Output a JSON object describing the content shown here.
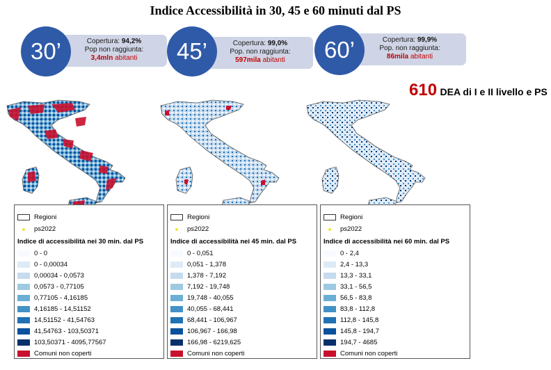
{
  "title": "Indice Accessibilità in 30, 45 e 60 minuti dal PS",
  "panels": [
    {
      "circle_label": "30’",
      "coverage_label": "Copertura:",
      "coverage_value": "94,2%",
      "unreached_label": "Pop non raggiunta:",
      "unreached_value": "3,4mln",
      "unreached_unit": "abitanti",
      "legend": {
        "regions": "Regioni",
        "ps": "ps2022",
        "title": "Indice di accessibilità nei 30 min. dal PS",
        "classes": [
          "0 - 0",
          "0 - 0,00034",
          "0,00034 - 0,0573",
          "0,0573 - 0,77105",
          "0,77105 - 4,16185",
          "4,16185 - 14,51152",
          "14,51152 - 41,54763",
          "41,54763 - 103,50371",
          "103,50371 - 4095,77567"
        ],
        "not_covered": "Comuni non coperti"
      }
    },
    {
      "circle_label": "45’",
      "coverage_label": "Copertura:",
      "coverage_value": "99,0%",
      "unreached_label": "Pop. non raggiunta:",
      "unreached_value": "597mila",
      "unreached_unit": "abitanti",
      "legend": {
        "regions": "Regioni",
        "ps": "ps2022",
        "title": "Indice di accessibilità nei 45 min. dal PS",
        "classes": [
          "0 - 0,051",
          "0,051 - 1,378",
          "1,378 - 7,192",
          "7,192 - 19,748",
          "19,748 - 40,055",
          "40,055 - 68,441",
          "68,441 - 106,967",
          "106,967 - 166,98",
          "166,98 - 6219,625"
        ],
        "not_covered": "Comuni non coperti"
      }
    },
    {
      "circle_label": "60’",
      "coverage_label": "Copertura:",
      "coverage_value": "99,9%",
      "unreached_label": "Pop. non raggiunta:",
      "unreached_value": "86mila",
      "unreached_unit": "abitanti",
      "legend": {
        "regions": "Regioni",
        "ps": "ps2022",
        "title": "Indice di accessibilità nei 60 min. dal PS",
        "classes": [
          "0 - 2,4",
          "2,4 - 13,3",
          "13,3 - 33,1",
          "33,1 - 56,5",
          "56,5 - 83,8",
          "83,8 - 112,8",
          "112,8 - 145,8",
          "145,8 - 194,7",
          "194,7 - 4685"
        ],
        "not_covered": "Comuni non coperti"
      }
    }
  ],
  "dea": {
    "number": "610",
    "text": "DEA di I e II livello e PS"
  },
  "colors": {
    "circle": "#2f5aa8",
    "infobox": "#cfd5e6",
    "highlight": "#c00000",
    "not_covered": "#c8102e",
    "ps_point": "#f2e33a",
    "scale": [
      "#f7fbff",
      "#deebf7",
      "#c6dbef",
      "#9ecae1",
      "#6baed6",
      "#4292c6",
      "#2171b5",
      "#08519c",
      "#08306b"
    ]
  }
}
